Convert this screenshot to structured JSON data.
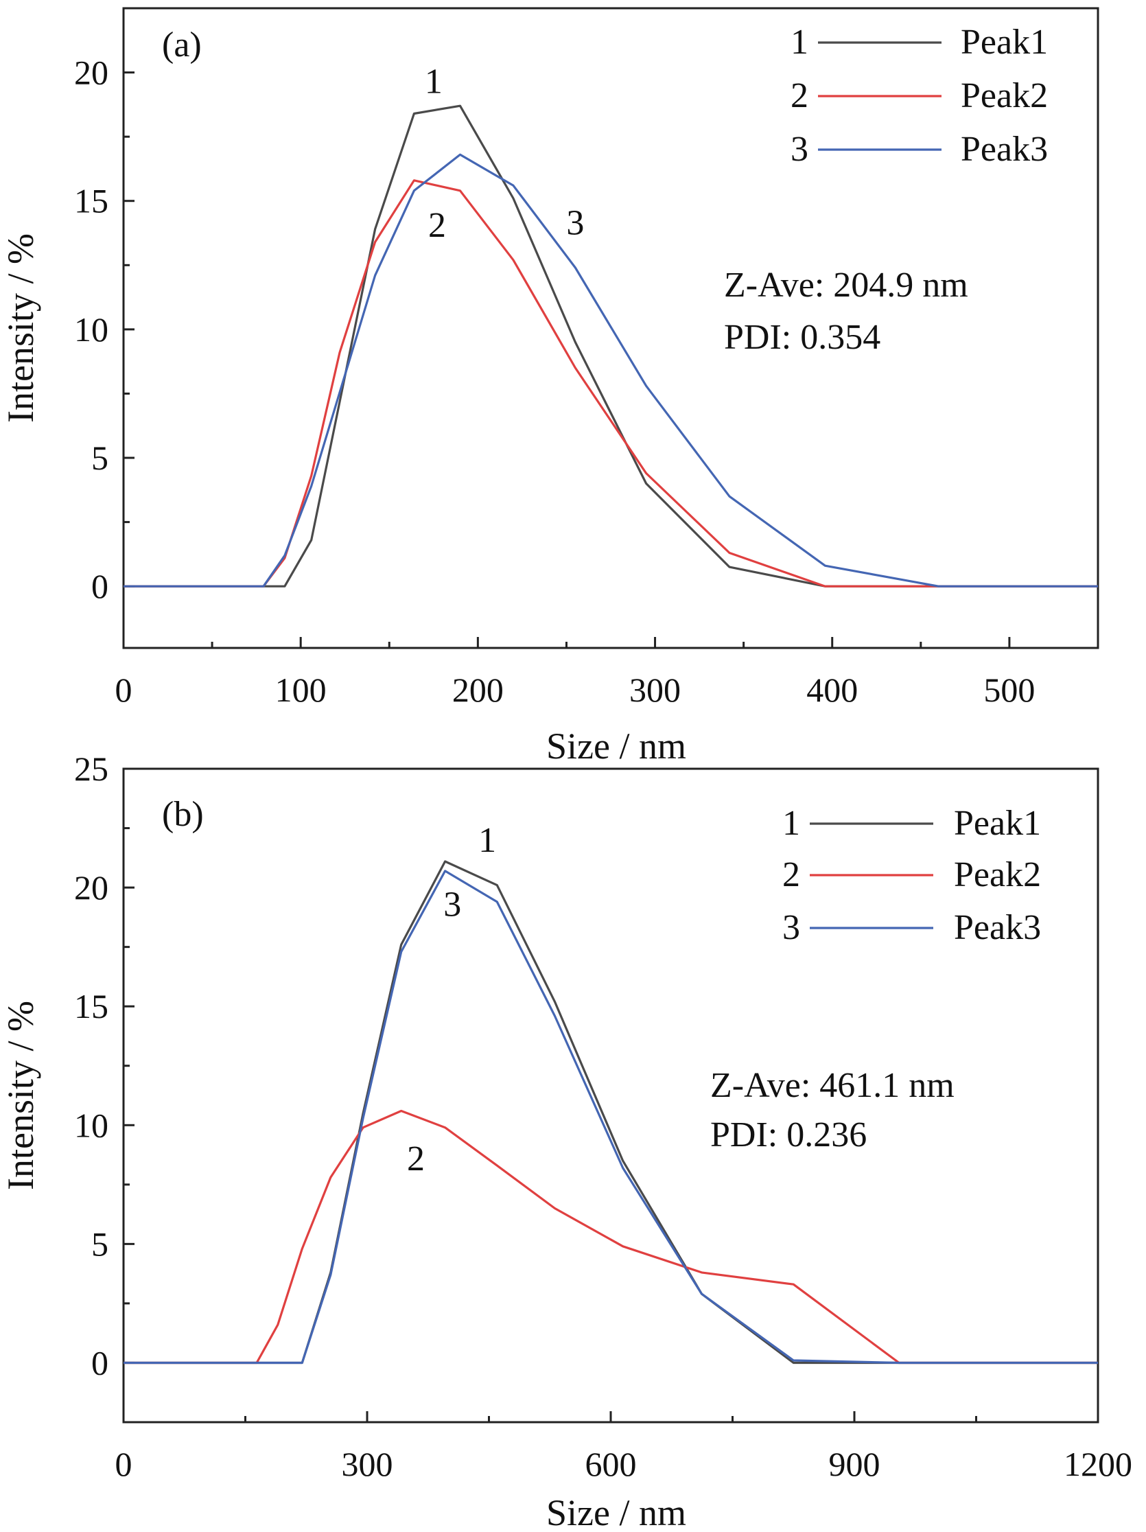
{
  "chart_data": [
    {
      "type": "line",
      "panel_label": "(a)",
      "xlabel": "Size / nm",
      "ylabel": "Intensity / %",
      "xlim": [
        0,
        550
      ],
      "ylim": [
        -2.4,
        22.5
      ],
      "xticks": [
        0,
        100,
        200,
        300,
        400,
        500
      ],
      "yticks": [
        0,
        5,
        10,
        15,
        20
      ],
      "legend_placement": "top-right",
      "grid": false,
      "series": [
        {
          "name": "Peak1",
          "legend_number": "1",
          "color": "#4a4a4a",
          "x": [
            0,
            91,
            106,
            142,
            164,
            190,
            220,
            255,
            295,
            342,
            396,
            460,
            550
          ],
          "y": [
            0,
            0,
            1.8,
            13.9,
            18.4,
            18.7,
            15.1,
            9.5,
            4.0,
            0.75,
            0,
            0,
            0
          ]
        },
        {
          "name": "Peak2",
          "legend_number": "2",
          "color": "#e04040",
          "x": [
            0,
            79,
            91,
            106,
            122,
            142,
            164,
            190,
            220,
            255,
            295,
            342,
            396,
            460,
            550
          ],
          "y": [
            0,
            0,
            1.1,
            4.3,
            9.1,
            13.4,
            15.8,
            15.4,
            12.7,
            8.5,
            4.4,
            1.3,
            0,
            0,
            0
          ]
        },
        {
          "name": "Peak3",
          "legend_number": "3",
          "color": "#4466b3",
          "x": [
            0,
            79,
            91,
            106,
            142,
            164,
            190,
            220,
            255,
            295,
            342,
            396,
            460,
            550
          ],
          "y": [
            0,
            0,
            1.2,
            3.9,
            12.1,
            15.4,
            16.8,
            15.6,
            12.4,
            7.8,
            3.5,
            0.8,
            0,
            0
          ]
        }
      ],
      "curve_labels": [
        {
          "text": "1",
          "x": 175,
          "y": 19.2
        },
        {
          "text": "2",
          "x": 177,
          "y": 13.6
        },
        {
          "text": "3",
          "x": 255,
          "y": 13.7
        }
      ],
      "annotation_lines": [
        "Z-Ave: 204.9 nm",
        "PDI: 0.354"
      ]
    },
    {
      "type": "line",
      "panel_label": "(b)",
      "xlabel": "Size / nm",
      "ylabel": "Intensity / %",
      "xlim": [
        0,
        1200
      ],
      "ylim": [
        -2.5,
        25
      ],
      "xticks": [
        0,
        300,
        600,
        900,
        1200
      ],
      "yticks": [
        0,
        5,
        10,
        15,
        20,
        25
      ],
      "legend_placement": "top-right",
      "grid": false,
      "series": [
        {
          "name": "Peak1",
          "legend_number": "1",
          "color": "#4a4a4a",
          "x": [
            0,
            220,
            255,
            295,
            342,
            396,
            460,
            531,
            615,
            712,
            825,
            955,
            1200
          ],
          "y": [
            0,
            0,
            3.8,
            10.5,
            17.6,
            21.1,
            20.1,
            15.2,
            8.5,
            2.9,
            0,
            0,
            0
          ]
        },
        {
          "name": "Peak2",
          "legend_number": "2",
          "color": "#e04040",
          "x": [
            0,
            164,
            190,
            220,
            255,
            295,
            342,
            396,
            460,
            531,
            615,
            712,
            825,
            955,
            1200
          ],
          "y": [
            0,
            0,
            1.6,
            4.8,
            7.8,
            9.9,
            10.6,
            9.9,
            8.3,
            6.5,
            4.9,
            3.8,
            3.3,
            0,
            0
          ]
        },
        {
          "name": "Peak3",
          "legend_number": "3",
          "color": "#4466b3",
          "x": [
            0,
            220,
            255,
            295,
            342,
            396,
            460,
            531,
            615,
            712,
            825,
            955,
            1200
          ],
          "y": [
            0,
            0,
            3.7,
            10.3,
            17.3,
            20.7,
            19.4,
            14.6,
            8.2,
            2.9,
            0.1,
            0,
            0
          ]
        }
      ],
      "curve_labels": [
        {
          "text": "1",
          "x": 448,
          "y": 21.5
        },
        {
          "text": "3",
          "x": 405,
          "y": 18.8
        },
        {
          "text": "2",
          "x": 360,
          "y": 8.1
        }
      ],
      "annotation_lines": [
        "Z-Ave: 461.1 nm",
        "PDI: 0.236"
      ]
    }
  ]
}
